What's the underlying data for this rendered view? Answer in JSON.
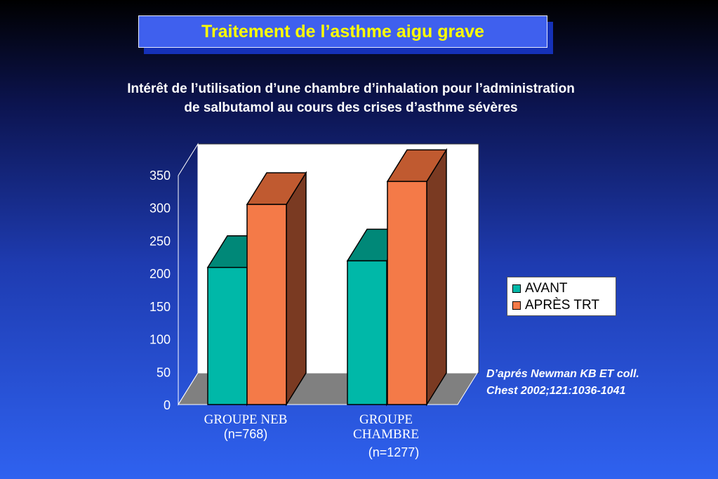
{
  "slide": {
    "title": "Traitement de l’asthme aigu grave",
    "subtitle_line1": "Intérêt de l’utilisation d’une chambre d’inhalation pour l’administration",
    "subtitle_line2": "de salbutamol au cours des crises d’asthme sévères",
    "reference_line1": "D’aprés Newman KB ET coll.",
    "reference_line2": "Chest 2002;121:1036-1041"
  },
  "category_labels": {
    "neb_name": "GROUPE NEB",
    "neb_n": "(n=768)",
    "chambre_name1": "GROUPE",
    "chambre_name2": "CHAMBRE",
    "chambre_n": "(n=1277)"
  },
  "chart_data": {
    "type": "bar",
    "style": "3d-clustered",
    "categories": [
      "GROUPE NEB (n=768)",
      "GROUPE CHAMBRE (n=1277)"
    ],
    "series": [
      {
        "name": "AVANT",
        "values": [
          209,
          219
        ],
        "color": "#00b8a8"
      },
      {
        "name": "APRÈS TRT",
        "values": [
          305,
          340
        ],
        "color": "#f47a48"
      }
    ],
    "yticks": [
      "0",
      "50",
      "100",
      "150",
      "200",
      "250",
      "300",
      "350"
    ],
    "ylim": [
      0,
      350
    ],
    "legend": "right",
    "grid": false,
    "colors": {
      "floor": "#808080",
      "wall": "#ffffff",
      "avant_top": "#008878",
      "avant_side": "#006d62",
      "apres_top": "#c05a30",
      "apres_side": "#7a3a22"
    }
  }
}
